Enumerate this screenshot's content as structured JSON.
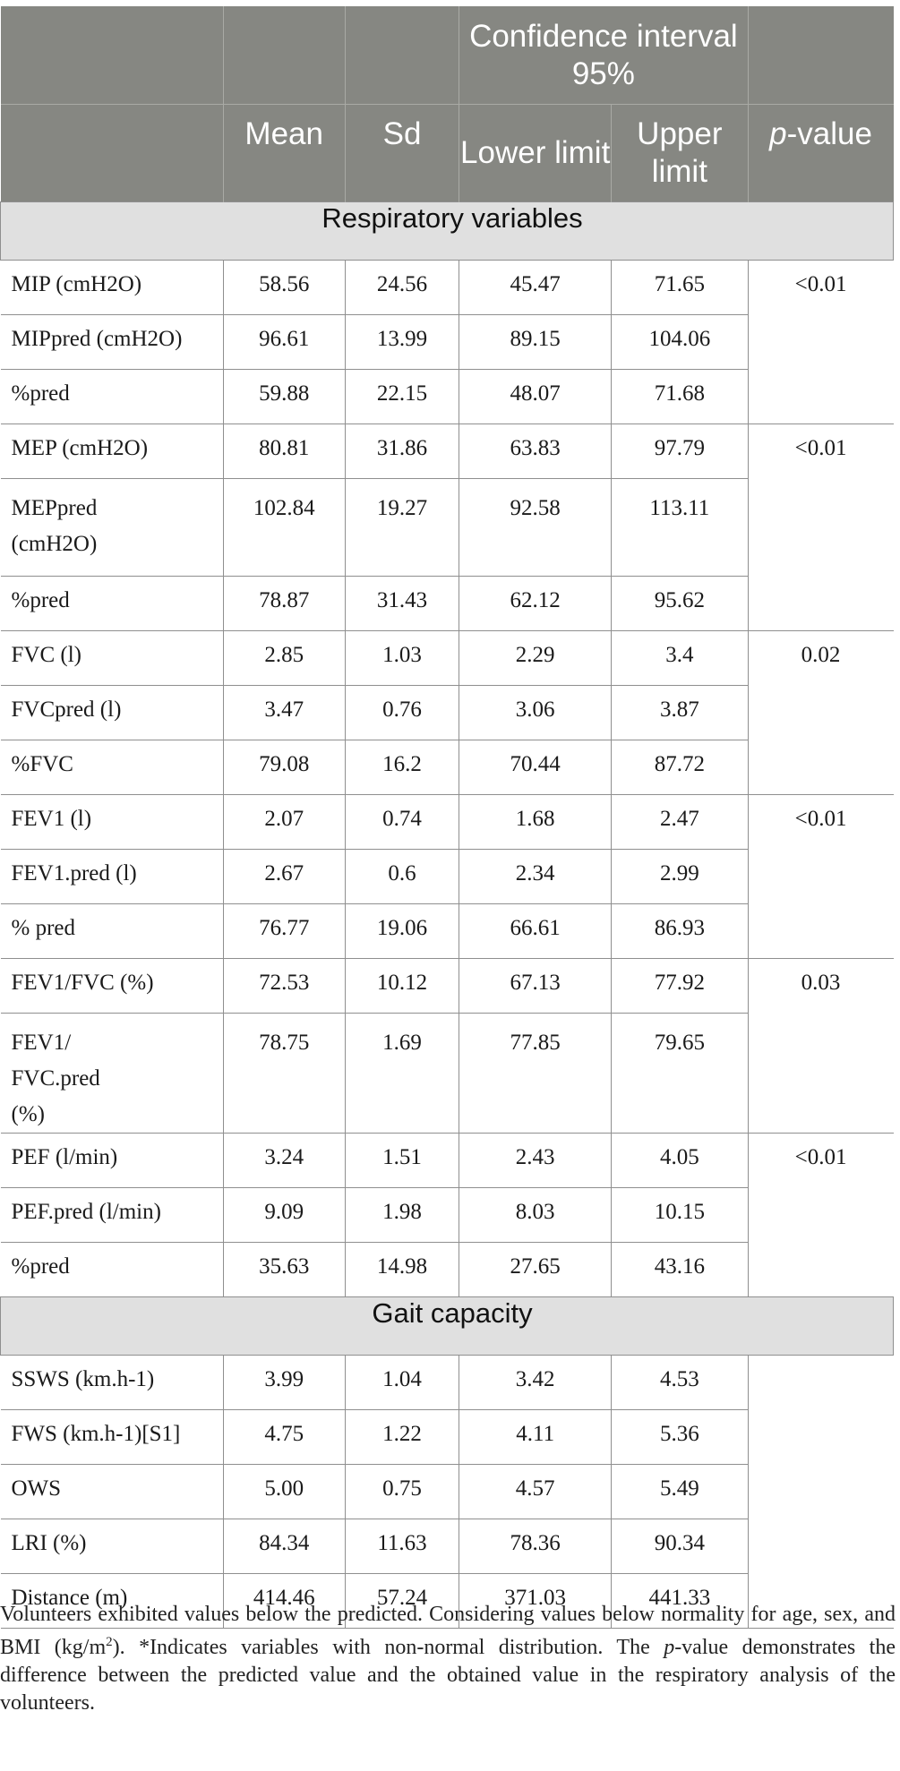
{
  "header": {
    "ci_group": "Confidence interval 95%",
    "columns": {
      "mean": "Mean",
      "sd": "Sd",
      "lower": "Lower limit",
      "upper": "Upper limit",
      "p_italic": "p",
      "p_rest": "-value"
    }
  },
  "sections": [
    {
      "title": "Respiratory variables",
      "rows": [
        {
          "label": "MIP (cmH2O)",
          "mean": "58.56",
          "sd": "24.56",
          "lower": "45.47",
          "upper": "71.65",
          "p": "<0.01"
        },
        {
          "label": "MIPpred (cmH2O)",
          "mean": "96.61",
          "sd": "13.99",
          "lower": "89.15",
          "upper": "104.06",
          "p": ""
        },
        {
          "label": "%pred",
          "mean": "59.88",
          "sd": "22.15",
          "lower": "48.07",
          "upper": "71.68",
          "p": ""
        },
        {
          "label": "MEP (cmH2O)",
          "mean": "80.81",
          "sd": "31.86",
          "lower": "63.83",
          "upper": "97.79",
          "p": "<0.01"
        },
        {
          "label": "MEPpred (cmH2O)",
          "mean": "102.84",
          "sd": "19.27",
          "lower": "92.58",
          "upper": "113.11",
          "p": ""
        },
        {
          "label": "%pred",
          "mean": "78.87",
          "sd": "31.43",
          "lower": "62.12",
          "upper": "95.62",
          "p": ""
        },
        {
          "label": "FVC (l)",
          "mean": "2.85",
          "sd": "1.03",
          "lower": "2.29",
          "upper": "3.4",
          "p": "0.02"
        },
        {
          "label": "FVCpred (l)",
          "mean": "3.47",
          "sd": "0.76",
          "lower": "3.06",
          "upper": "3.87",
          "p": ""
        },
        {
          "label": "%FVC",
          "mean": "79.08",
          "sd": "16.2",
          "lower": "70.44",
          "upper": "87.72",
          "p": ""
        },
        {
          "label": "FEV1 (l)",
          "mean": "2.07",
          "sd": "0.74",
          "lower": "1.68",
          "upper": "2.47",
          "p": "<0.01"
        },
        {
          "label": "FEV1.pred (l)",
          "mean": "2.67",
          "sd": "0.6",
          "lower": "2.34",
          "upper": "2.99",
          "p": ""
        },
        {
          "label": "% pred",
          "mean": "76.77",
          "sd": "19.06",
          "lower": "66.61",
          "upper": "86.93",
          "p": ""
        },
        {
          "label": "FEV1/FVC (%)",
          "mean": "72.53",
          "sd": "10.12",
          "lower": "67.13",
          "upper": "77.92",
          "p": "0.03"
        },
        {
          "label": "FEV1/ FVC.pred (%)",
          "mean": "78.75",
          "sd": "1.69",
          "lower": "77.85",
          "upper": "79.65",
          "p": ""
        },
        {
          "label": "PEF (l/min)",
          "mean": "3.24",
          "sd": "1.51",
          "lower": "2.43",
          "upper": "4.05",
          "p": "<0.01"
        },
        {
          "label": "PEF.pred (l/min)",
          "mean": "9.09",
          "sd": "1.98",
          "lower": "8.03",
          "upper": "10.15",
          "p": ""
        },
        {
          "label": "%pred",
          "mean": "35.63",
          "sd": "14.98",
          "lower": "27.65",
          "upper": "43.16",
          "p": ""
        }
      ]
    },
    {
      "title": "Gait capacity",
      "rows": [
        {
          "label": "SSWS (km.h-1)",
          "mean": "3.99",
          "sd": "1.04",
          "lower": "3.42",
          "upper": "4.53",
          "p": ""
        },
        {
          "label": "FWS (km.h-1)[S1]",
          "mean": "4.75",
          "sd": "1.22",
          "lower": "4.11",
          "upper": "5.36",
          "p": ""
        },
        {
          "label": "OWS",
          "mean": "5.00",
          "sd": "0.75",
          "lower": "4.57",
          "upper": "5.49",
          "p": ""
        },
        {
          "label": "LRI (%)",
          "mean": "84.34",
          "sd": "11.63",
          "lower": "78.36",
          "upper": "90.34",
          "p": ""
        },
        {
          "label": "Distance (m)",
          "mean": "414.46",
          "sd": "57.24",
          "lower": "371.03",
          "upper": "441.33",
          "p": ""
        }
      ]
    }
  ],
  "footnote": {
    "part1": "Volunteers exhibited values below the predicted. Considering values below normality for age, sex, and BMI (kg/m",
    "sup": "2",
    "part2": "). *Indicates variables with non-normal distribution. The ",
    "p_italic": "p",
    "part3": "-value demonstrates the difference between the predicted value and the obtained value in the respiratory analysis of the volunteers."
  }
}
